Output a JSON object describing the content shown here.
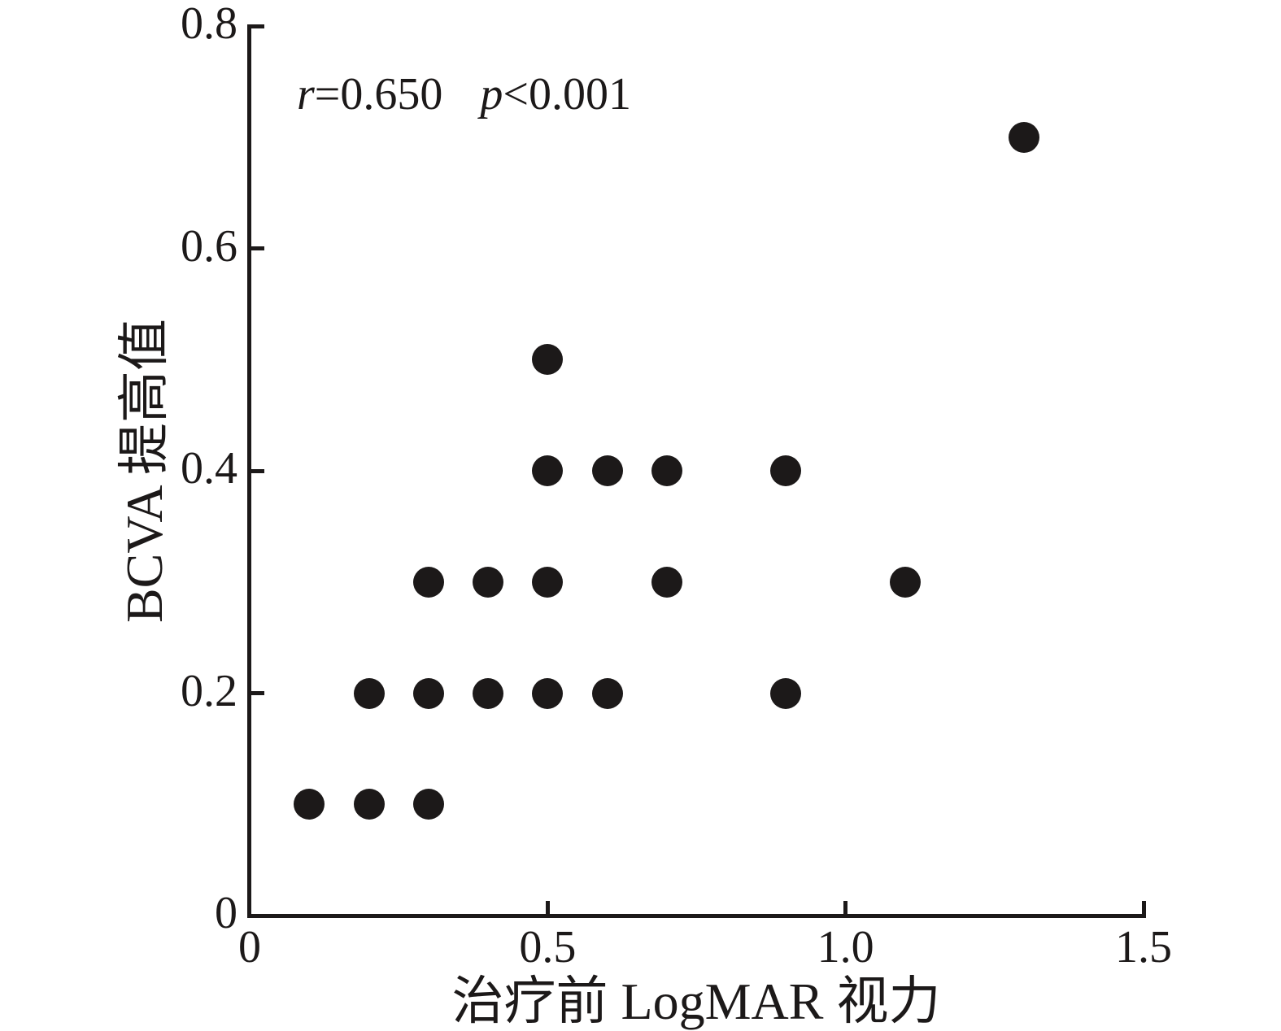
{
  "figure": {
    "background": "#ffffff",
    "ink_color": "#1c1919"
  },
  "chart_data": {
    "type": "scatter",
    "title": "",
    "xlabel": "治疗前 LogMAR 视力",
    "ylabel": "BCVA 提高值",
    "annotation": {
      "r_symbol": "r",
      "r_value": "=0.650",
      "p_symbol": "p",
      "p_value": "<0.001"
    },
    "xlim": [
      0,
      1.5
    ],
    "ylim": [
      0,
      0.8
    ],
    "x_ticks": [
      0,
      0.5,
      1.0,
      1.5
    ],
    "x_tick_labels": [
      "0",
      "0.5",
      "1.0",
      "1.5"
    ],
    "y_ticks": [
      0,
      0.2,
      0.4,
      0.6,
      0.8
    ],
    "y_tick_labels": [
      "0",
      "0.2",
      "0.4",
      "0.6",
      "0.8"
    ],
    "grid": false,
    "legend": null,
    "marker": "circle",
    "marker_color": "#1c1919",
    "points": [
      {
        "x": 0.1,
        "y": 0.1
      },
      {
        "x": 0.2,
        "y": 0.1
      },
      {
        "x": 0.3,
        "y": 0.1
      },
      {
        "x": 0.2,
        "y": 0.2
      },
      {
        "x": 0.3,
        "y": 0.2
      },
      {
        "x": 0.4,
        "y": 0.2
      },
      {
        "x": 0.5,
        "y": 0.2
      },
      {
        "x": 0.6,
        "y": 0.2
      },
      {
        "x": 0.9,
        "y": 0.2
      },
      {
        "x": 0.3,
        "y": 0.3
      },
      {
        "x": 0.4,
        "y": 0.3
      },
      {
        "x": 0.5,
        "y": 0.3
      },
      {
        "x": 0.7,
        "y": 0.3
      },
      {
        "x": 1.1,
        "y": 0.3
      },
      {
        "x": 0.5,
        "y": 0.4
      },
      {
        "x": 0.6,
        "y": 0.4
      },
      {
        "x": 0.7,
        "y": 0.4
      },
      {
        "x": 0.9,
        "y": 0.4
      },
      {
        "x": 0.5,
        "y": 0.5
      },
      {
        "x": 1.3,
        "y": 0.7
      }
    ]
  }
}
